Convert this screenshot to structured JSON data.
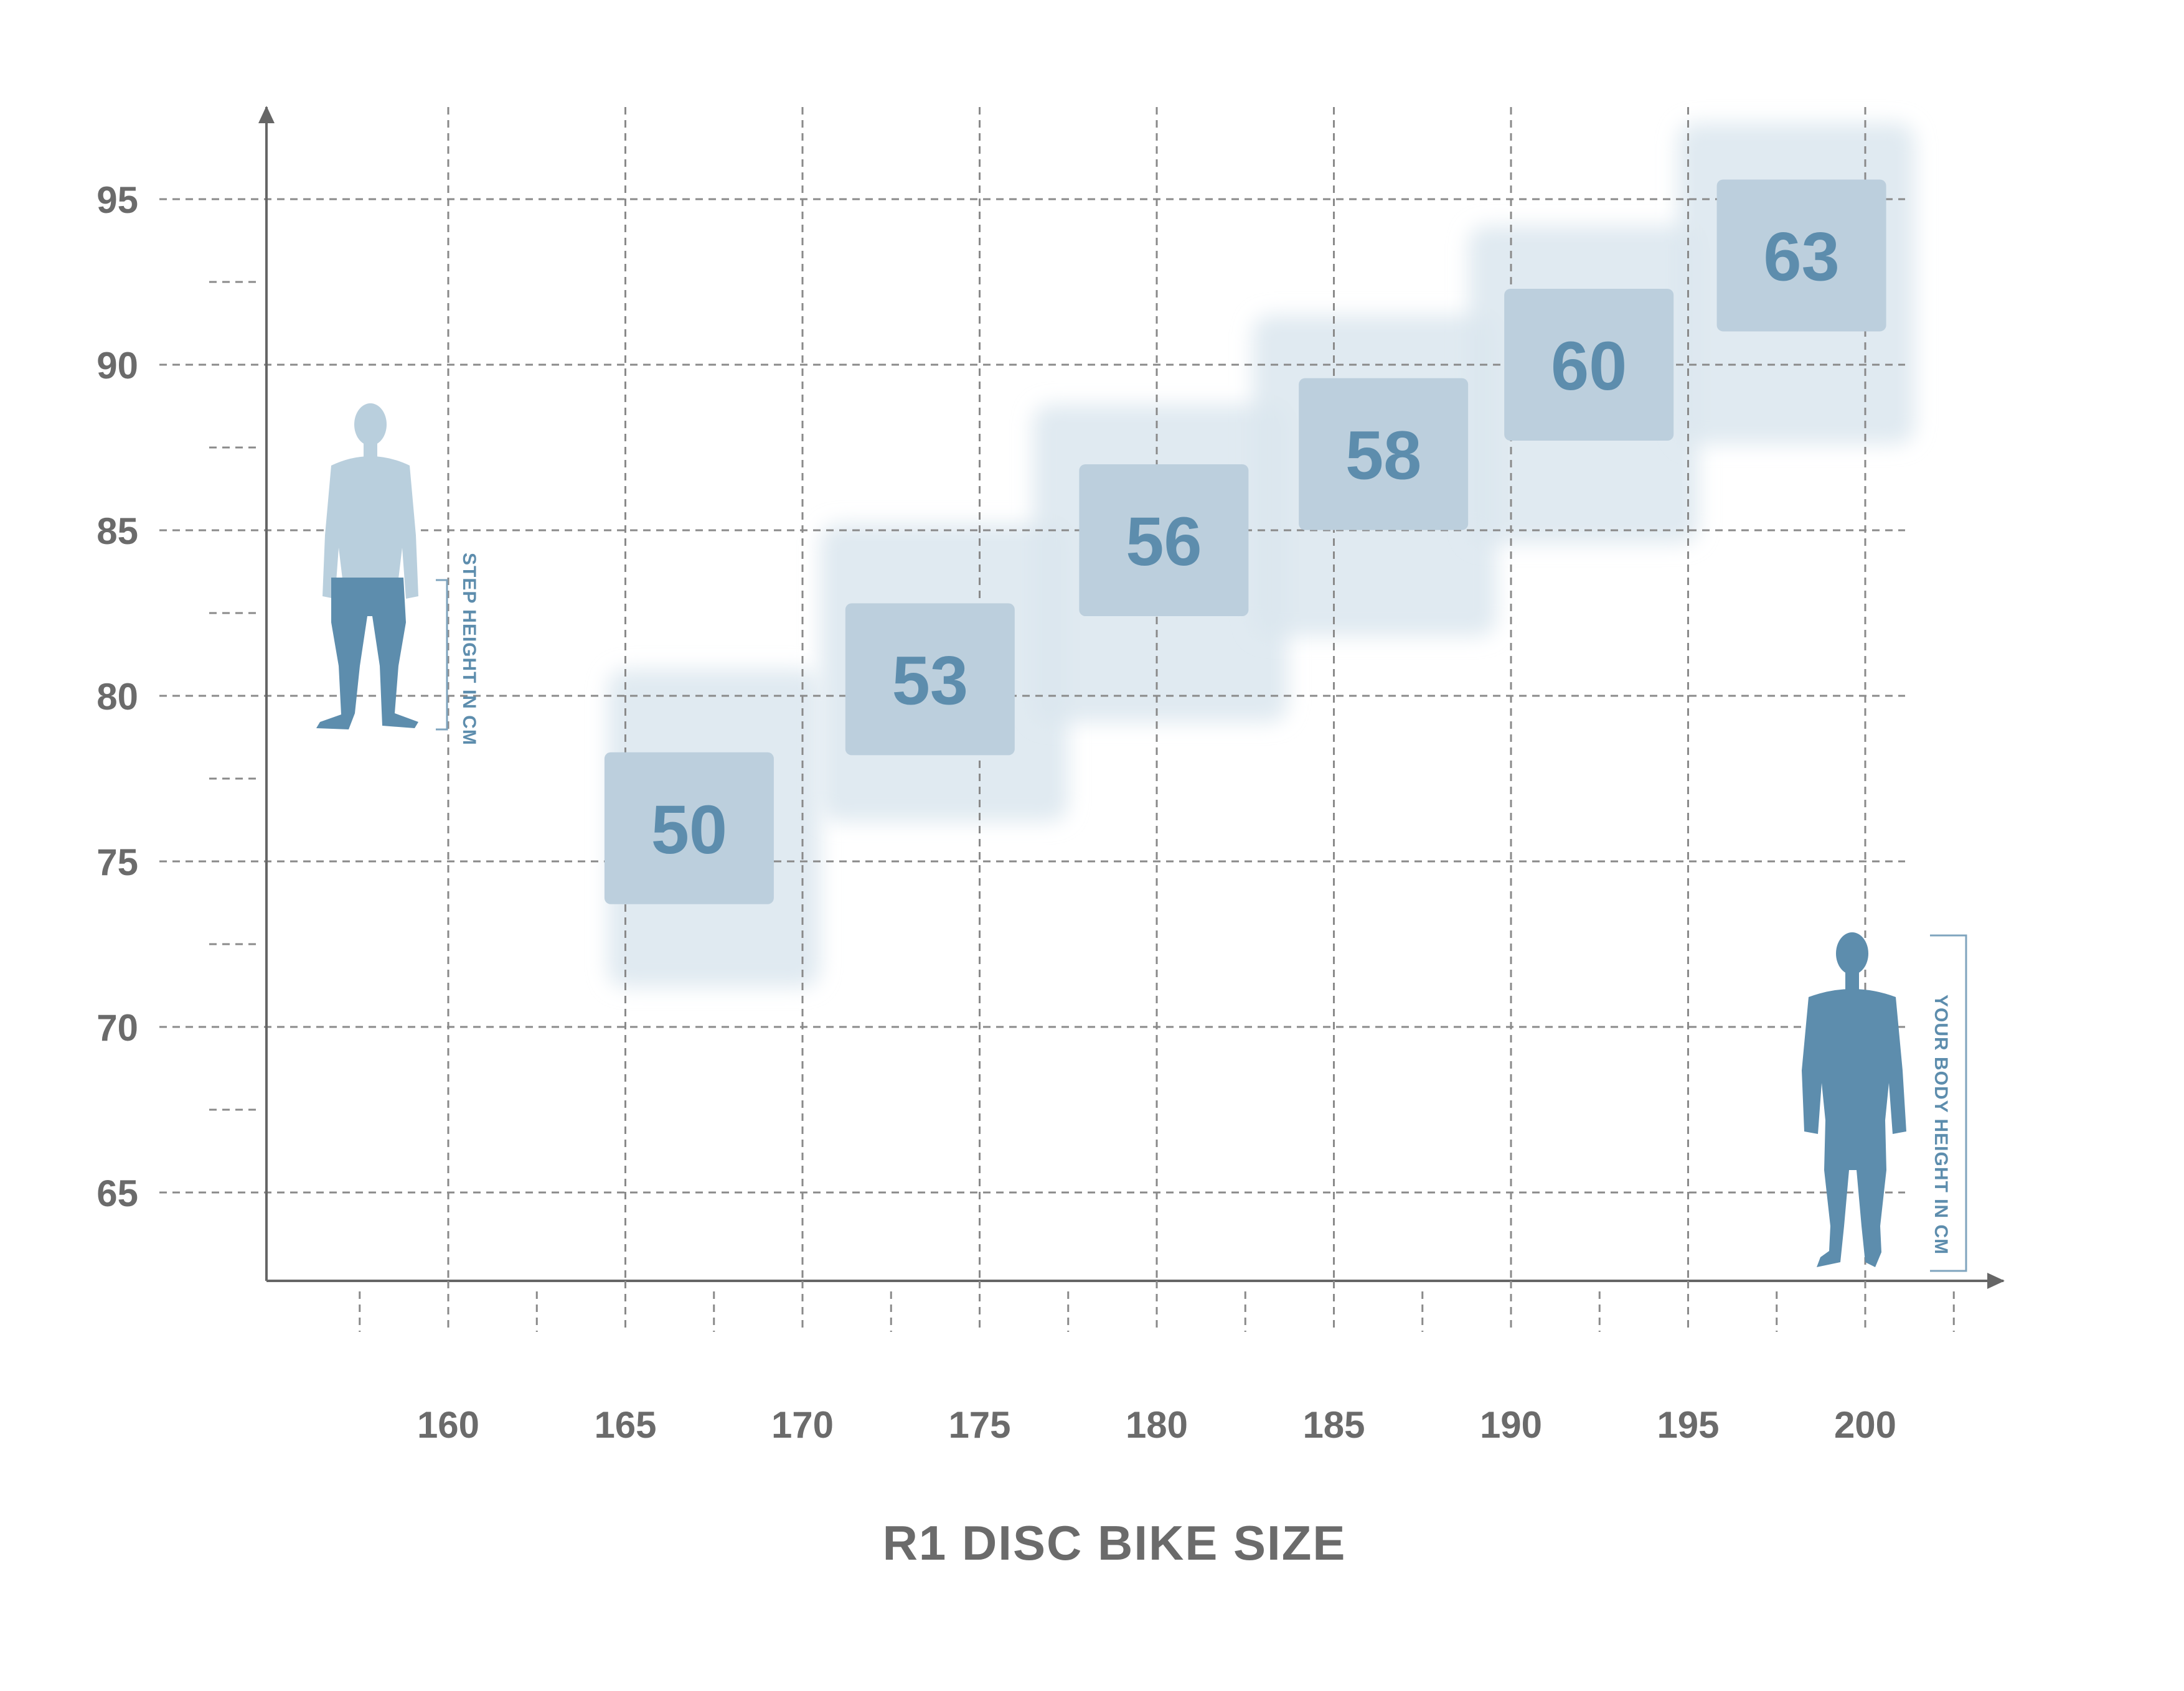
{
  "colors": {
    "axis": "#666666",
    "grid": "#8a8a8a",
    "tick_text": "#6b6b6b",
    "box_halo": "#dbe6ee",
    "box_fill": "#bccfdd",
    "box_text": "#5d8dad",
    "figure_dark": "#5d8dad",
    "figure_light": "#b9cfdd"
  },
  "chart_data": {
    "type": "scatter",
    "title": "R1 DISC BIKE SIZE",
    "xlabel": "YOUR BODY HEIGHT IN CM",
    "ylabel": "STEP HEIGHT IN CM",
    "xlim": [
      155,
      203
    ],
    "ylim": [
      63,
      97
    ],
    "x_ticks": [
      160,
      165,
      170,
      175,
      180,
      185,
      190,
      195,
      200
    ],
    "y_ticks": [
      65,
      70,
      75,
      80,
      85,
      90,
      95
    ],
    "grid": true,
    "sizes": [
      {
        "label": "50",
        "x_range": [
          164.5,
          170.5
        ],
        "y_range": [
          71.2,
          80.8
        ],
        "x": 166.8,
        "y": 76.0
      },
      {
        "label": "53",
        "x_range": [
          170.5,
          177.5
        ],
        "y_range": [
          76.2,
          85.2
        ],
        "x": 173.6,
        "y": 80.5
      },
      {
        "label": "56",
        "x_range": [
          176.5,
          183.7
        ],
        "y_range": [
          79.2,
          88.8
        ],
        "x": 180.2,
        "y": 84.7
      },
      {
        "label": "58",
        "x_range": [
          182.7,
          189.6
        ],
        "y_range": [
          81.8,
          91.5
        ],
        "x": 186.4,
        "y": 87.3
      },
      {
        "label": "60",
        "x_range": [
          188.8,
          195.3
        ],
        "y_range": [
          84.6,
          94.2
        ],
        "x": 192.2,
        "y": 90.0
      },
      {
        "label": "63",
        "x_range": [
          194.7,
          201.4
        ],
        "y_range": [
          87.6,
          97.3
        ],
        "x": 198.2,
        "y": 93.3
      }
    ]
  }
}
